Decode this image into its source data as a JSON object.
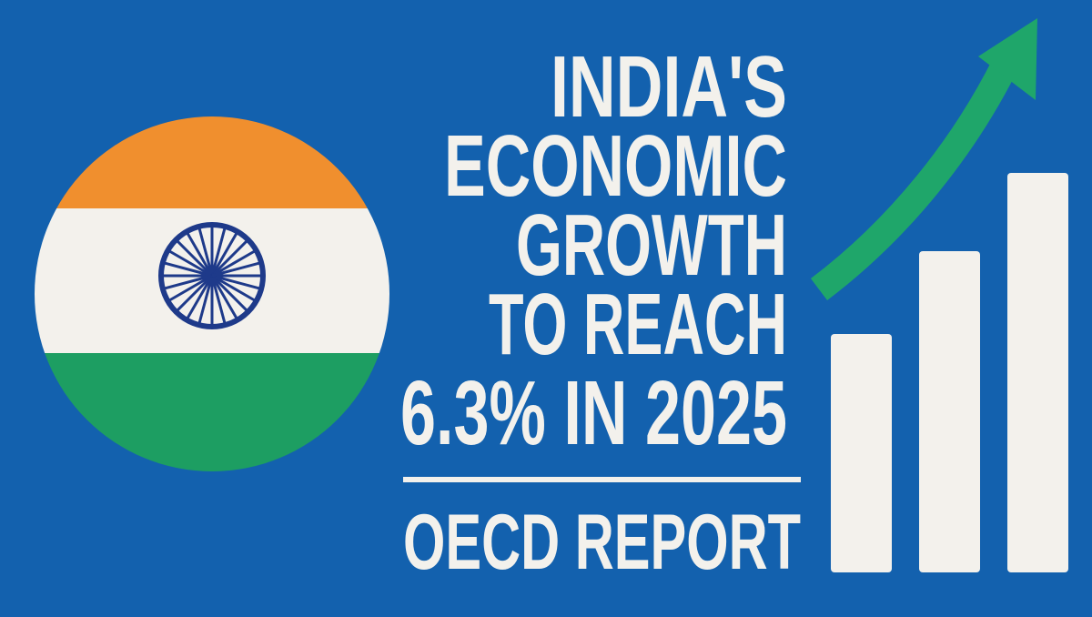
{
  "headline": {
    "lines": [
      "INDIA'S",
      "ECONOMIC",
      "GROWTH",
      "TO REACH",
      "6.3% IN 2025"
    ]
  },
  "source": "OECD REPORT"
}
